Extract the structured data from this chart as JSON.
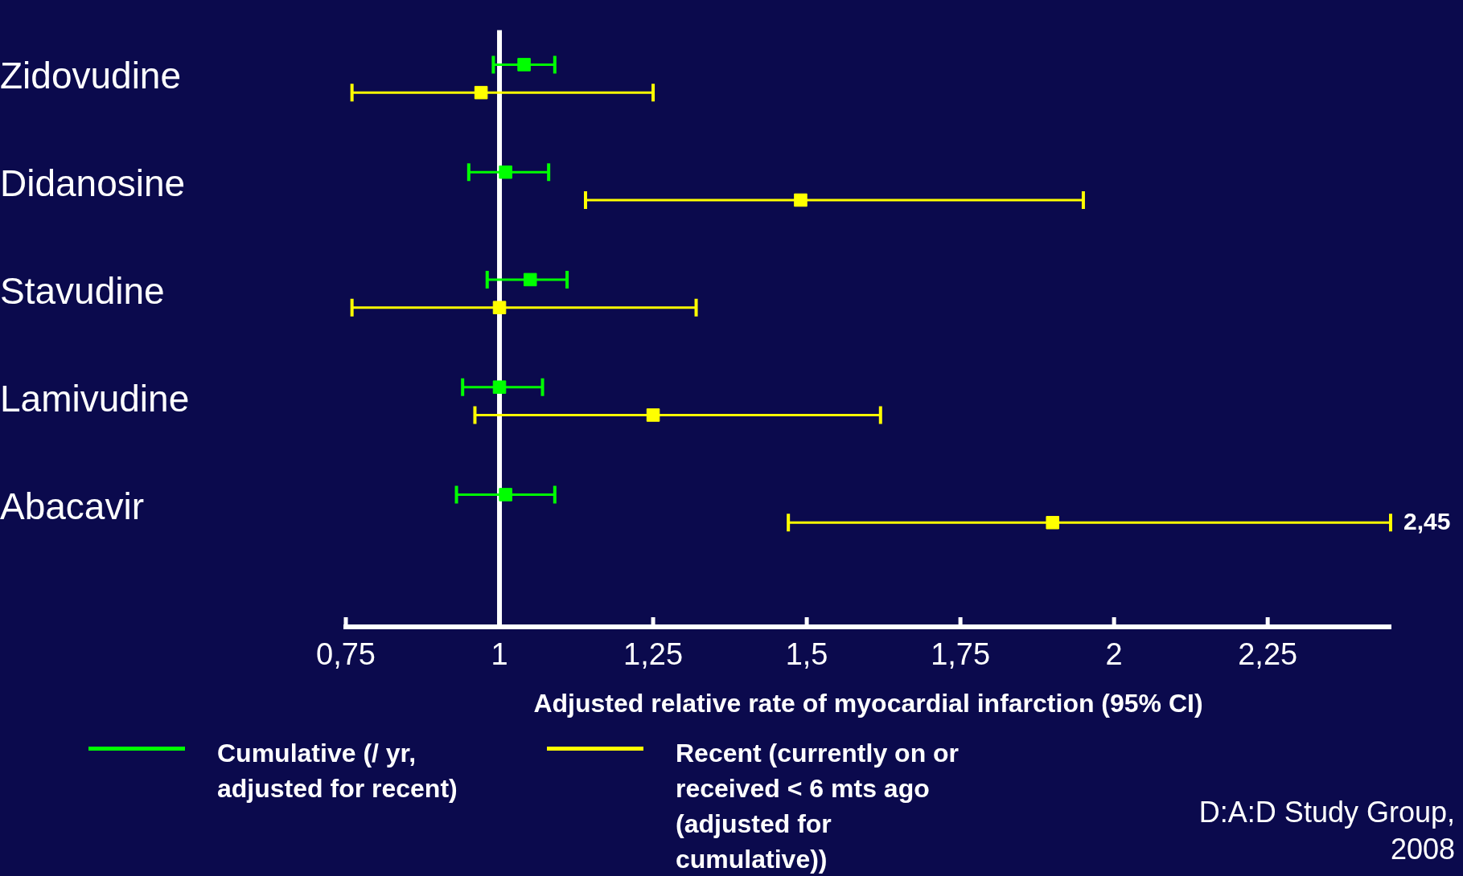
{
  "chart_data": {
    "type": "scatter",
    "orientation": "horizontal",
    "xlabel": "Adjusted relative rate of myocardial infarction (95% CI)",
    "categories": [
      "Zidovudine",
      "Didanosine",
      "Stavudine",
      "Lamivudine",
      "Abacavir"
    ],
    "series": [
      {
        "name": "Cumulative (/ yr, adjusted for recent)",
        "color": "#00ff00",
        "values": [
          1.04,
          1.01,
          1.05,
          1.0,
          1.01
        ],
        "errors": [
          [
            0.99,
            1.09
          ],
          [
            0.95,
            1.08
          ],
          [
            0.98,
            1.11
          ],
          [
            0.94,
            1.07
          ],
          [
            0.93,
            1.09
          ]
        ]
      },
      {
        "name": "Recent (currently on or received < 6 mts ago (adjusted for cumulative))",
        "color": "#ffff00",
        "values": [
          0.97,
          1.49,
          1.0,
          1.25,
          1.9
        ],
        "errors": [
          [
            0.76,
            1.25
          ],
          [
            1.14,
            1.95
          ],
          [
            0.76,
            1.32
          ],
          [
            0.96,
            1.62
          ],
          [
            1.47,
            2.45
          ]
        ]
      }
    ],
    "xlim": [
      0.75,
      2.45
    ],
    "xticks": [
      {
        "value": 0.75,
        "label": "0,75"
      },
      1,
      {
        "value": 1.25,
        "label": "1,25"
      },
      {
        "value": 1.5,
        "label": "1,5"
      },
      {
        "value": 1.75,
        "label": "1,75"
      },
      2,
      {
        "value": 2.25,
        "label": "2,25"
      }
    ],
    "ref_lines": [
      {
        "axis": "x",
        "value": 1,
        "color": "#ffffff"
      }
    ],
    "marker": "square",
    "grid": false,
    "legend": "bottom left",
    "annotations": [
      "2,45",
      "D:A:D Study Group, 2008"
    ]
  }
}
